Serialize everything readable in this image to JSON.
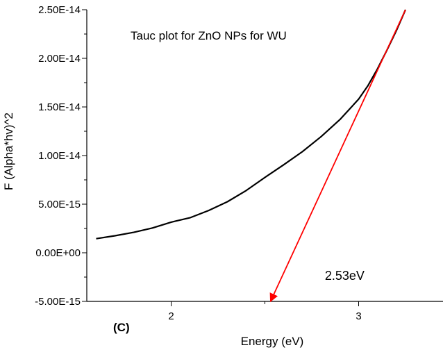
{
  "chart_data": {
    "type": "line",
    "title": "Tauc plot for ZnO NPs for WU",
    "xlabel": "Energy (eV)",
    "ylabel": "F (Alpha*hv)^2",
    "panel_label": "(C)",
    "xlim": [
      1.55,
      3.45
    ],
    "ylim": [
      -5e-15,
      2.5e-14
    ],
    "x_ticks": [
      2,
      3
    ],
    "x_tick_labels": [
      "2",
      "3"
    ],
    "y_ticks": [
      -5e-15,
      0,
      5e-15,
      1e-14,
      1.5e-14,
      2e-14,
      2.5e-14
    ],
    "y_tick_labels": [
      "-5.00E-15",
      "0.00E+00",
      "5.00E-15",
      "1.00E-14",
      "1.50E-14",
      "2.00E-14",
      "2.50E-14"
    ],
    "grid": false,
    "series": [
      {
        "color": "#000000",
        "x": [
          1.6,
          1.7,
          1.8,
          1.9,
          2.0,
          2.1,
          2.2,
          2.3,
          2.4,
          2.5,
          2.6,
          2.7,
          2.8,
          2.9,
          3.0,
          3.05,
          3.1,
          3.15,
          3.2,
          3.25
        ],
        "y": [
          1.45e-15,
          1.75e-15,
          2.1e-15,
          2.55e-15,
          3.15e-15,
          3.6e-15,
          4.35e-15,
          5.25e-15,
          6.4e-15,
          7.75e-15,
          9.05e-15,
          1.04e-14,
          1.195e-14,
          1.37e-14,
          1.58e-14,
          1.72e-14,
          1.89e-14,
          2.08e-14,
          2.28e-14,
          2.5e-14
        ]
      }
    ],
    "fit_line": {
      "color": "#ff0000",
      "x": [
        3.25,
        2.53
      ],
      "y": [
        2.5e-14,
        -5e-15
      ]
    },
    "annotation": {
      "text": "2.53eV",
      "x": 2.82,
      "y": -2.8e-15
    }
  }
}
